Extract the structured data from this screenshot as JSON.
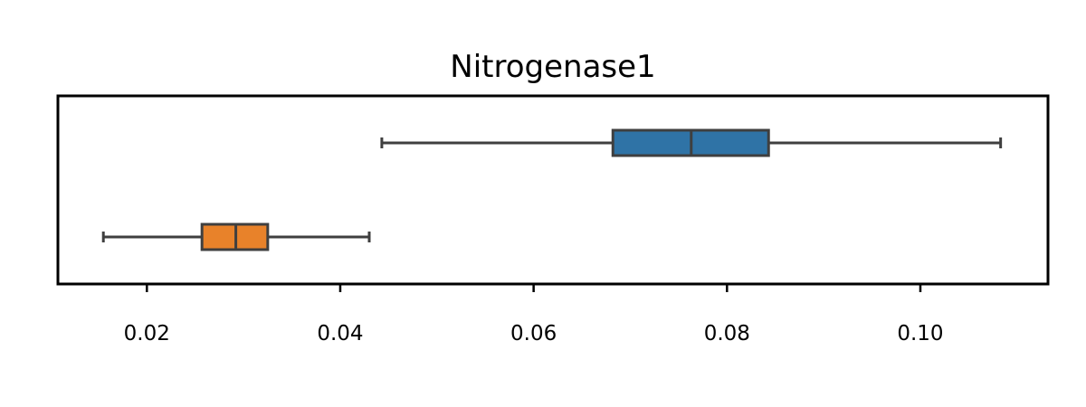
{
  "chart_data": {
    "type": "boxplot",
    "orientation": "horizontal",
    "title": "Nitrogenase1",
    "xlabel": "",
    "ylabel": "",
    "xlim": [
      0.0108,
      0.1132
    ],
    "xticks": [
      0.02,
      0.04,
      0.06,
      0.08,
      0.1
    ],
    "xtick_labels": [
      "0.02",
      "0.04",
      "0.06",
      "0.08",
      "0.10"
    ],
    "yticks_visible": false,
    "grid": false,
    "series": [
      {
        "color": "#2f73a6",
        "whisker_low": 0.0443,
        "q1": 0.0682,
        "median": 0.0763,
        "q3": 0.0843,
        "whisker_high": 0.1083
      },
      {
        "color": "#e8822a",
        "whisker_low": 0.0155,
        "q1": 0.0257,
        "median": 0.0292,
        "q3": 0.0325,
        "whisker_high": 0.043
      }
    ]
  }
}
